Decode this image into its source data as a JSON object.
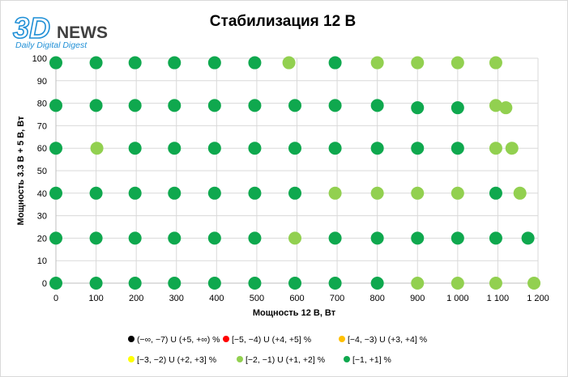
{
  "logo": {
    "brand_3d": "3D",
    "brand_news": "NEWS",
    "tagline": "Daily Digital Digest"
  },
  "colors": {
    "dark_green": "#0fa84e",
    "light_green": "#92d050",
    "yellow": "#ffff00",
    "orange": "#ffc000",
    "red": "#ff0000",
    "black": "#000000",
    "grid": "#d9d9d9",
    "logo_3d": "#1f8fd6"
  },
  "chart_data": {
    "type": "scatter",
    "title": "Стабилизация 12 В",
    "xlabel": "Мощность  12 В, Вт",
    "ylabel": "Мощность  3.3 В + 5 В, Вт",
    "xlim": [
      0,
      1200
    ],
    "ylim": [
      0,
      100
    ],
    "x_ticks": [
      0,
      100,
      200,
      300,
      400,
      500,
      600,
      700,
      800,
      900,
      1000,
      1100,
      1200
    ],
    "x_tick_labels": [
      "0",
      "100",
      "200",
      "300",
      "400",
      "500",
      "600",
      "700",
      "800",
      "900",
      "1 000",
      "1 100",
      "1 200"
    ],
    "y_ticks": [
      0,
      10,
      20,
      30,
      40,
      50,
      60,
      70,
      80,
      90,
      100
    ],
    "y_tick_labels": [
      "0",
      "10",
      "20",
      "30",
      "40",
      "50",
      "60",
      "70",
      "80",
      "90",
      "100"
    ],
    "grid": true,
    "legend_position": "bottom",
    "legend": [
      {
        "label": "(−∞, −7) U (+5, +∞) %",
        "color": "#000000"
      },
      {
        "label": "[−5, −4) U (+4, +5] %",
        "color": "#ff0000"
      },
      {
        "label": "[−4, −3) U (+3, +4] %",
        "color": "#ffc000"
      },
      {
        "label": "[−3, −2) U (+2, +3] %",
        "color": "#ffff00"
      },
      {
        "label": "[−2, −1) U (+1, +2] %",
        "color": "#92d050"
      },
      {
        "label": "[−1, +1] %",
        "color": "#0fa84e"
      }
    ],
    "series": [
      {
        "name": "[−2, −1) U (+1, +2] %",
        "color": "#92d050",
        "points": [
          [
            580,
            98
          ],
          [
            800,
            98
          ],
          [
            900,
            98
          ],
          [
            1000,
            98
          ],
          [
            1095,
            98
          ],
          [
            1095,
            79
          ],
          [
            1120,
            78
          ],
          [
            102,
            60
          ],
          [
            1095,
            60
          ],
          [
            1135,
            60
          ],
          [
            695,
            40
          ],
          [
            800,
            40
          ],
          [
            900,
            40
          ],
          [
            1000,
            40
          ],
          [
            1155,
            40
          ],
          [
            595,
            20
          ],
          [
            900,
            0
          ],
          [
            1000,
            0
          ],
          [
            1095,
            0
          ],
          [
            1190,
            0
          ]
        ]
      },
      {
        "name": "[−1, +1] %",
        "color": "#0fa84e",
        "points": [
          [
            0,
            98
          ],
          [
            100,
            98
          ],
          [
            197,
            98
          ],
          [
            295,
            98
          ],
          [
            395,
            98
          ],
          [
            495,
            98
          ],
          [
            695,
            98
          ],
          [
            0,
            79
          ],
          [
            100,
            79
          ],
          [
            197,
            79
          ],
          [
            295,
            79
          ],
          [
            395,
            79
          ],
          [
            495,
            79
          ],
          [
            595,
            79
          ],
          [
            695,
            79
          ],
          [
            800,
            79
          ],
          [
            900,
            78
          ],
          [
            1000,
            78
          ],
          [
            0,
            60
          ],
          [
            197,
            60
          ],
          [
            295,
            60
          ],
          [
            395,
            60
          ],
          [
            495,
            60
          ],
          [
            595,
            60
          ],
          [
            695,
            60
          ],
          [
            800,
            60
          ],
          [
            900,
            60
          ],
          [
            1000,
            60
          ],
          [
            0,
            40
          ],
          [
            100,
            40
          ],
          [
            197,
            40
          ],
          [
            295,
            40
          ],
          [
            395,
            40
          ],
          [
            495,
            40
          ],
          [
            595,
            40
          ],
          [
            1095,
            40
          ],
          [
            0,
            20
          ],
          [
            100,
            20
          ],
          [
            197,
            20
          ],
          [
            295,
            20
          ],
          [
            395,
            20
          ],
          [
            495,
            20
          ],
          [
            695,
            20
          ],
          [
            800,
            20
          ],
          [
            900,
            20
          ],
          [
            1000,
            20
          ],
          [
            1095,
            20
          ],
          [
            1175,
            20
          ],
          [
            0,
            0
          ],
          [
            100,
            0
          ],
          [
            197,
            0
          ],
          [
            295,
            0
          ],
          [
            395,
            0
          ],
          [
            495,
            0
          ],
          [
            595,
            0
          ],
          [
            695,
            0
          ],
          [
            800,
            0
          ]
        ]
      }
    ]
  }
}
